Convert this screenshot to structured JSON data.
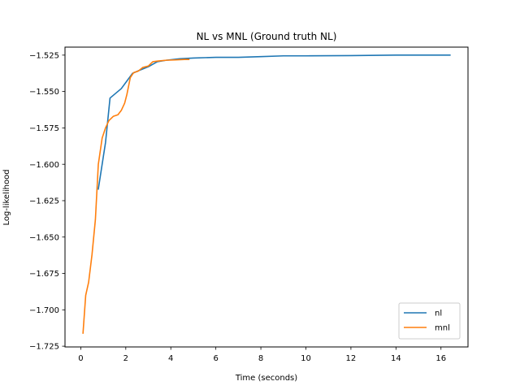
{
  "chart_data": {
    "type": "line",
    "title": "NL vs MNL (Ground truth NL)",
    "xlabel": "Time (seconds)",
    "ylabel": "Log-likelihood",
    "xlim": [
      -0.7,
      17.2
    ],
    "ylim": [
      -1.7255,
      -1.5195
    ],
    "xticks": [
      0,
      2,
      4,
      6,
      8,
      10,
      12,
      14,
      16
    ],
    "xtick_labels": [
      "0",
      "2",
      "4",
      "6",
      "8",
      "10",
      "12",
      "14",
      "16"
    ],
    "yticks": [
      -1.725,
      -1.7,
      -1.675,
      -1.65,
      -1.625,
      -1.6,
      -1.575,
      -1.55,
      -1.525
    ],
    "ytick_labels": [
      "−1.725",
      "−1.700",
      "−1.675",
      "−1.650",
      "−1.625",
      "−1.600",
      "−1.575",
      "−1.550",
      "−1.525"
    ],
    "grid": false,
    "legend_position": "lower-right",
    "series": [
      {
        "name": "nl",
        "color": "#1f77b4",
        "x": [
          0.78,
          1.1,
          1.3,
          1.8,
          2.3,
          2.6,
          3.0,
          3.4,
          3.8,
          4.4,
          5.0,
          6.0,
          7.0,
          8.0,
          9.0,
          10.0,
          12.0,
          14.0,
          16.4
        ],
        "y": [
          -1.617,
          -1.585,
          -1.5545,
          -1.548,
          -1.5375,
          -1.5355,
          -1.533,
          -1.5295,
          -1.5285,
          -1.5275,
          -1.527,
          -1.5265,
          -1.5265,
          -1.526,
          -1.5255,
          -1.5255,
          -1.5253,
          -1.525,
          -1.525
        ]
      },
      {
        "name": "mnl",
        "color": "#ff7f0e",
        "x": [
          0.1,
          0.22,
          0.35,
          0.5,
          0.65,
          0.78,
          0.95,
          1.1,
          1.25,
          1.45,
          1.65,
          1.8,
          1.95,
          2.05,
          2.2,
          2.35,
          2.55,
          2.75,
          3.0,
          3.2,
          3.45,
          3.8,
          4.2,
          4.6,
          4.8
        ],
        "y": [
          -1.716,
          -1.69,
          -1.681,
          -1.662,
          -1.638,
          -1.6,
          -1.582,
          -1.575,
          -1.57,
          -1.567,
          -1.566,
          -1.563,
          -1.558,
          -1.552,
          -1.5405,
          -1.537,
          -1.536,
          -1.5335,
          -1.5325,
          -1.5295,
          -1.529,
          -1.5285,
          -1.5283,
          -1.528,
          -1.528
        ]
      }
    ]
  }
}
